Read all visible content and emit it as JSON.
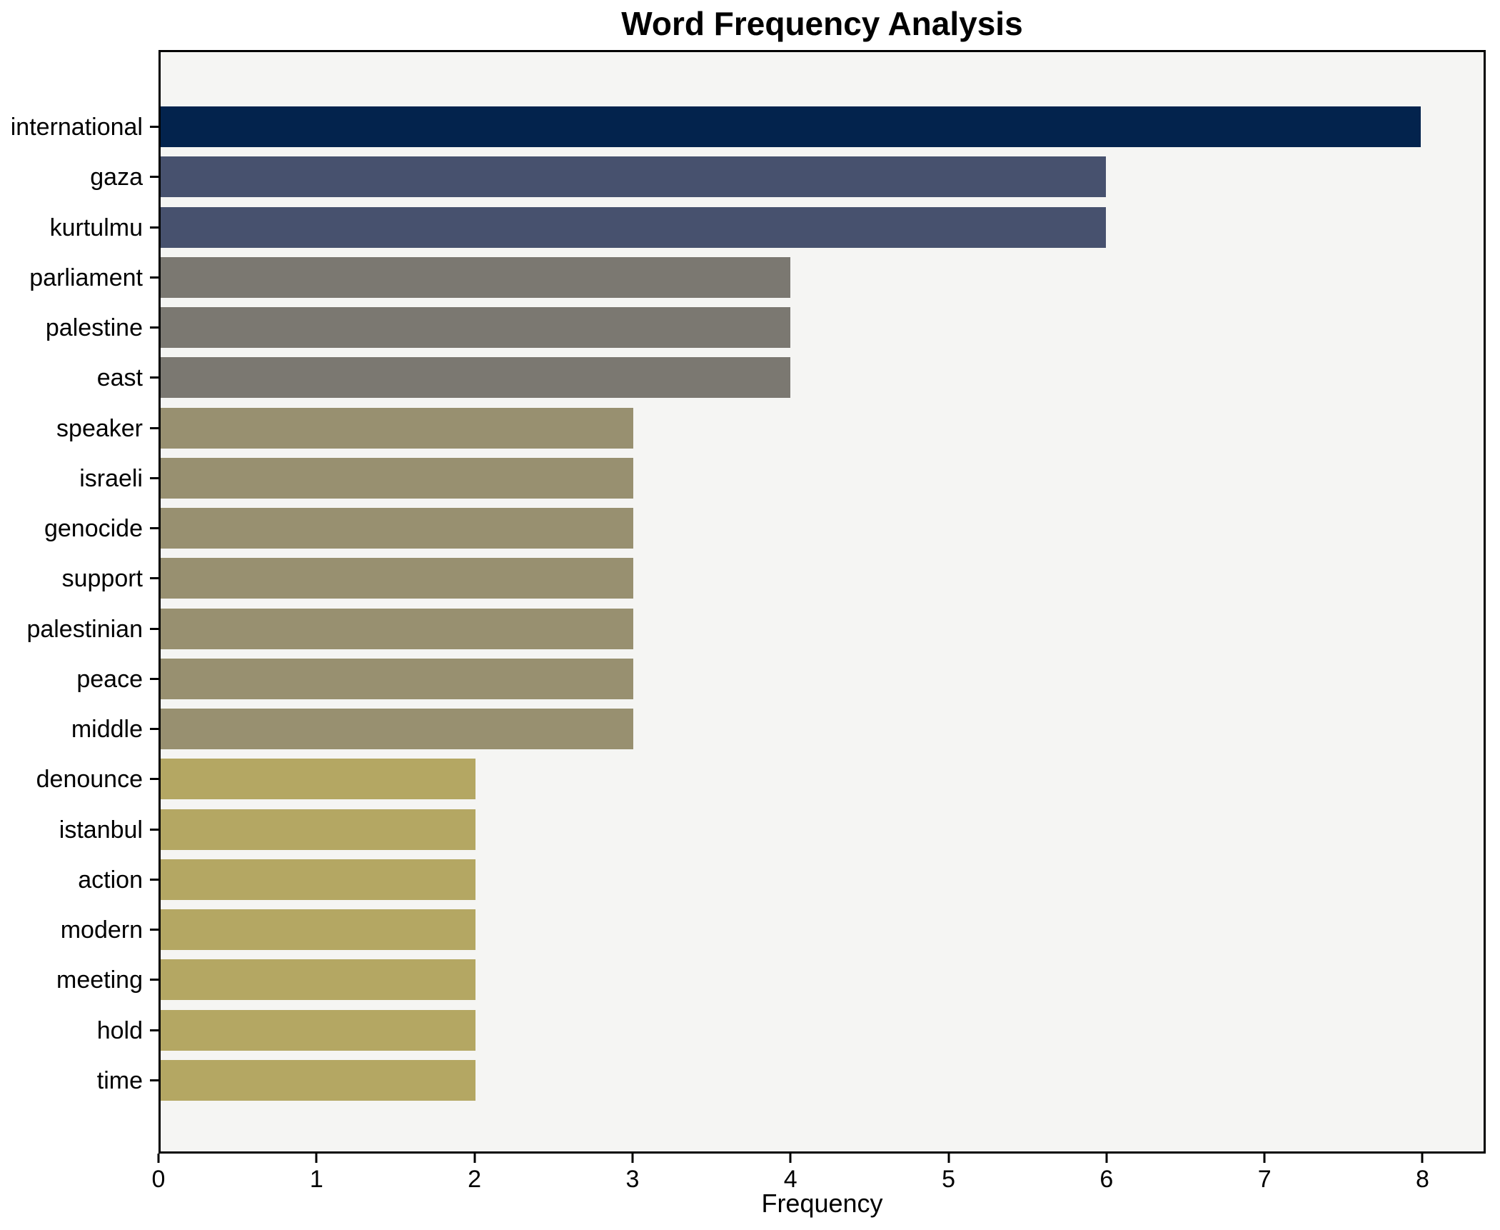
{
  "title": "Word Frequency Analysis",
  "chart_data": {
    "type": "bar",
    "orientation": "horizontal",
    "title": "Word Frequency Analysis",
    "xlabel": "Frequency",
    "ylabel": "",
    "categories": [
      "international",
      "gaza",
      "kurtulmu",
      "parliament",
      "palestine",
      "east",
      "speaker",
      "israeli",
      "genocide",
      "support",
      "palestinian",
      "peace",
      "middle",
      "denounce",
      "istanbul",
      "action",
      "modern",
      "meeting",
      "hold",
      "time"
    ],
    "values": [
      8,
      6,
      6,
      4,
      4,
      4,
      3,
      3,
      3,
      3,
      3,
      3,
      3,
      2,
      2,
      2,
      2,
      2,
      2,
      2
    ],
    "bar_colors": [
      "#03234d",
      "#47516e",
      "#47516e",
      "#7b7871",
      "#7b7871",
      "#7b7871",
      "#989070",
      "#989070",
      "#989070",
      "#989070",
      "#989070",
      "#989070",
      "#989070",
      "#b4a763",
      "#b4a763",
      "#b4a763",
      "#b4a763",
      "#b4a763",
      "#b4a763",
      "#b4a763"
    ],
    "xlim": [
      0,
      8.4
    ],
    "xticks": [
      0,
      1,
      2,
      3,
      4,
      5,
      6,
      7,
      8
    ],
    "grid": false,
    "legend": null,
    "plot_bg": "#f5f5f3",
    "figure_bg": "#ffffff",
    "spine_color": "#000000",
    "text_color": "#000000"
  }
}
